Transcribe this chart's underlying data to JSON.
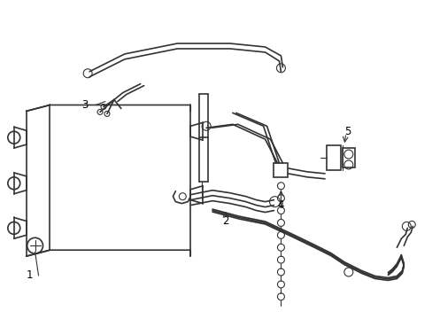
{
  "bg_color": "#ffffff",
  "line_color": "#333333",
  "lw_thin": 0.8,
  "lw_med": 1.2,
  "lw_thick": 2.2,
  "fig_width": 4.89,
  "fig_height": 3.6,
  "dpi": 100
}
